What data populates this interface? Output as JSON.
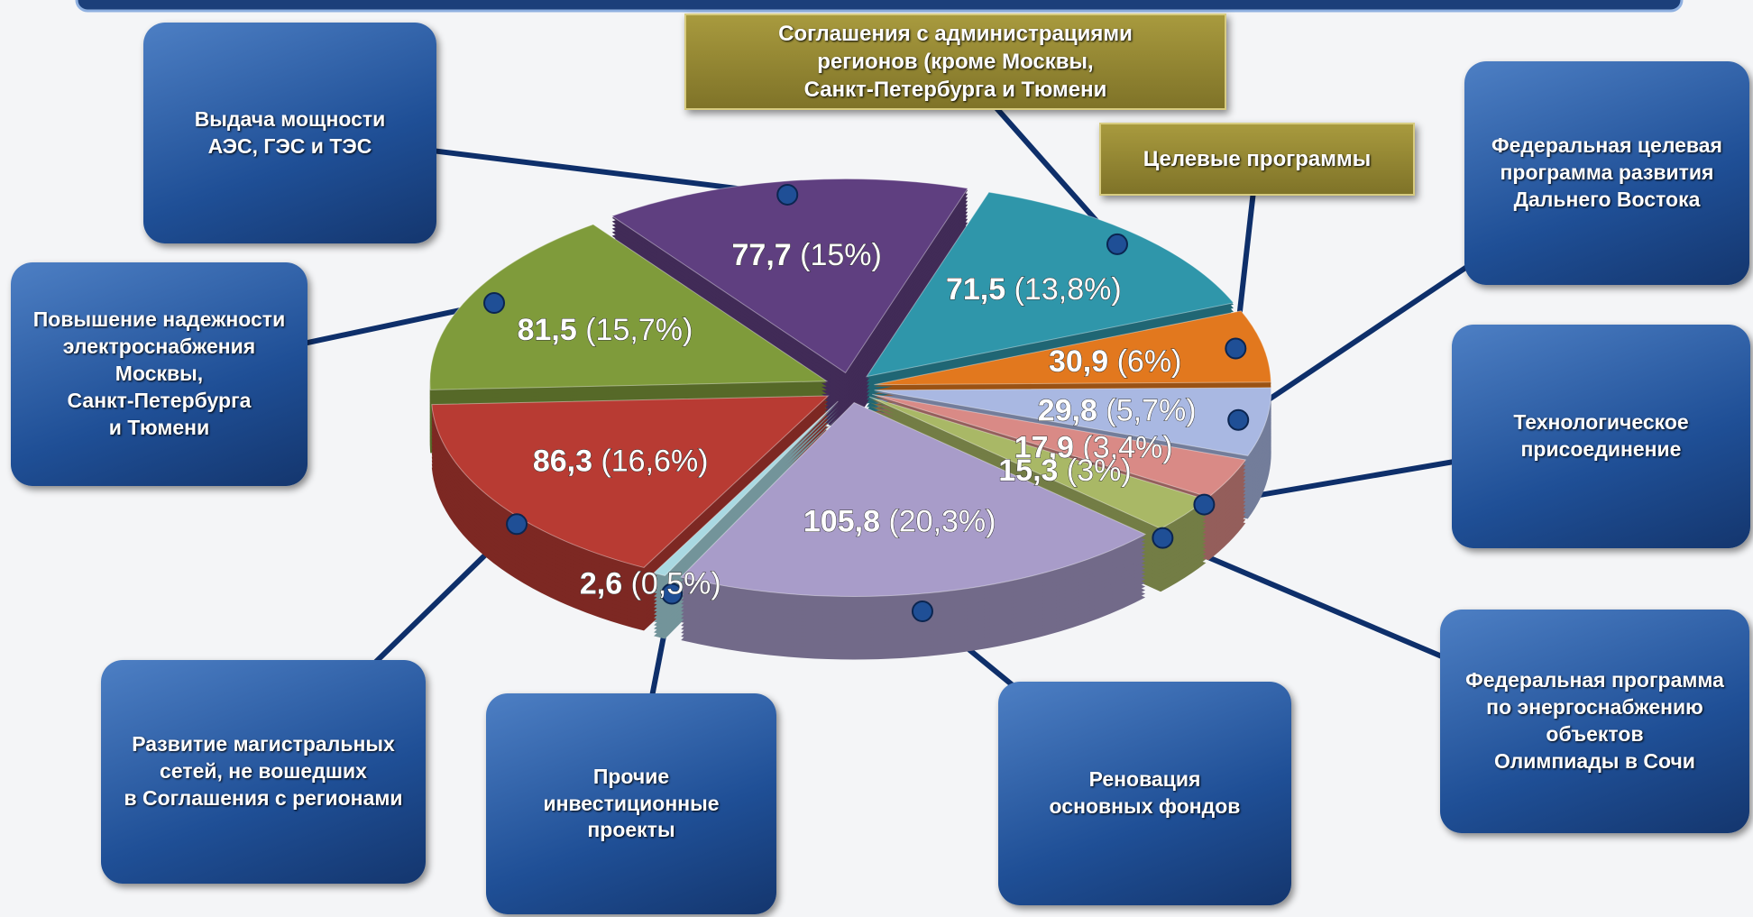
{
  "chart_data": {
    "type": "pie",
    "categories": [
      "Выдача мощности\nАЭС, ГЭС и ТЭС",
      "Соглашения с администрациями\nрегионов (кроме Москвы,\nСанкт-Петербурга и Тюмени",
      "Целевые программы",
      "Федеральная целевая\nпрограмма развития\nДальнего Востока",
      "Технологическое\nприсоединение",
      "Федеральная программа\nпо энергоснабжению\nобъектов\nОлимпиады в Сочи",
      "Реновация\nосновных фондов",
      "Прочие\nинвестиционные\nпроекты",
      "Развитие магистральных\nсетей, не вошедших\nв Соглашения с регионами",
      "Повышение надежности\nэлектроснабжения\nМосквы,\nСанкт-Петербурга\nи Тюмени"
    ],
    "values": [
      77.7,
      71.5,
      30.9,
      29.8,
      17.9,
      15.3,
      105.8,
      2.6,
      86.3,
      81.5
    ],
    "value_labels": [
      "77,7",
      "71,5",
      "30,9",
      "29,8",
      "17,9",
      "15,3",
      "105,8",
      "2,6",
      "86,3",
      "81,5"
    ],
    "percents": [
      15,
      13.8,
      6,
      5.7,
      3.4,
      3,
      20.3,
      0.5,
      16.6,
      15.7
    ],
    "percent_labels": [
      "(15%)",
      "(13,8%)",
      "(6%)",
      "(5,7%)",
      "(3,4%)",
      "(3%)",
      "(20,3%)",
      "(0,5%)",
      "(16,6%)",
      "(15,7%)"
    ],
    "colors": [
      "#5f3f80",
      "#2f96aa",
      "#e2781e",
      "#a9b8e2",
      "#d98a86",
      "#a9b866",
      "#a89cc9",
      "#a9d9e2",
      "#b83b33",
      "#7f9b3b"
    ]
  }
}
